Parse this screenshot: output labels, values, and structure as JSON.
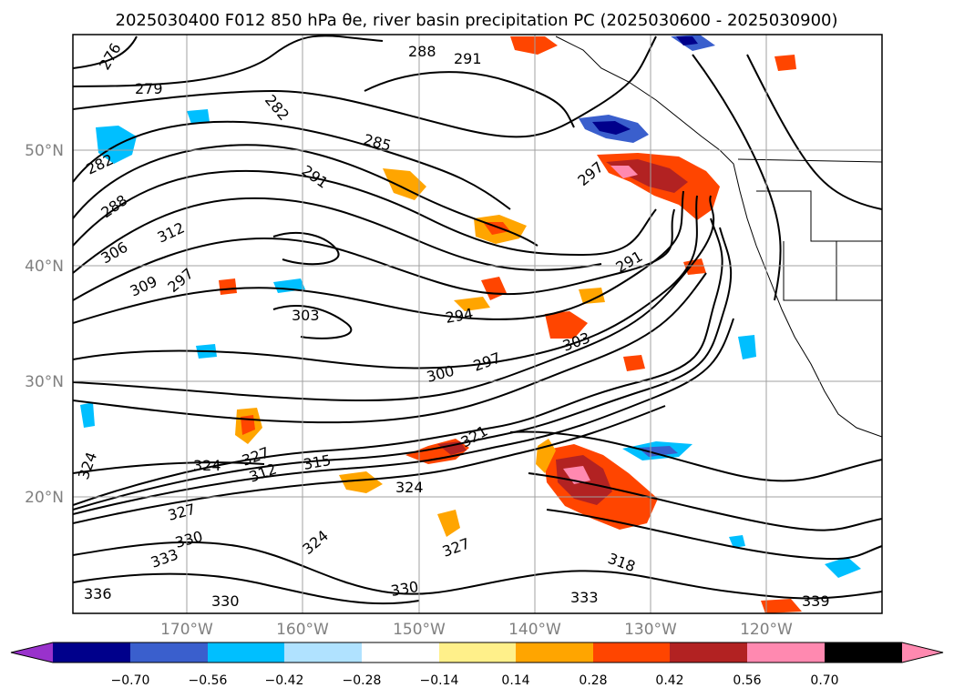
{
  "title": "2025030400 F012 850 hPa θe, river basin precipitation PC (2025030600 - 2025030900)",
  "map": {
    "lat_labels": [
      "50°N",
      "40°N",
      "30°N",
      "20°N"
    ],
    "lon_labels": [
      "170°W",
      "160°W",
      "150°W",
      "140°W",
      "130°W",
      "120°W"
    ],
    "contour_labels": [
      "276",
      "279",
      "282",
      "282",
      "285",
      "288",
      "288",
      "291",
      "291",
      "291",
      "294",
      "297",
      "297",
      "297",
      "300",
      "303",
      "303",
      "306",
      "309",
      "312",
      "312",
      "315",
      "318",
      "321",
      "324",
      "324",
      "324",
      "324",
      "327",
      "327",
      "327",
      "330",
      "330",
      "330",
      "333",
      "333",
      "336",
      "339"
    ]
  },
  "colorbar": {
    "ticks": [
      "−0.70",
      "−0.56",
      "−0.42",
      "−0.28",
      "−0.14",
      "0.14",
      "0.28",
      "0.42",
      "0.56",
      "0.70"
    ],
    "colors": [
      "#9932cc",
      "#00008b",
      "#3a5fcd",
      "#00bfff",
      "#b0e2ff",
      "#ffffff",
      "#fff08a",
      "#ffa500",
      "#ff4500",
      "#b22222",
      "#ff89b0"
    ]
  }
}
